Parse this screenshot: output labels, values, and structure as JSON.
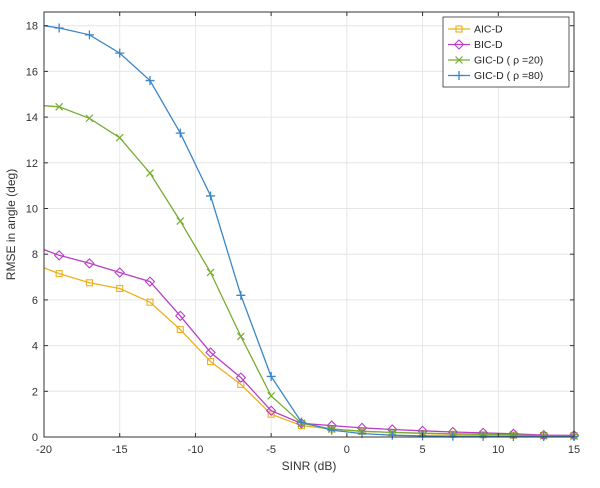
{
  "chart_data": {
    "type": "line",
    "xlabel": "SINR (dB)",
    "ylabel": "RMSE in angle (deg)",
    "xlim": [
      -20,
      15
    ],
    "ylim": [
      0,
      18.6
    ],
    "xticks": [
      -20,
      -15,
      -10,
      -5,
      0,
      5,
      10,
      15
    ],
    "yticks": [
      0,
      2,
      4,
      6,
      8,
      10,
      12,
      14,
      16,
      18
    ],
    "grid": true,
    "legend_position": "top-right",
    "series": [
      {
        "name": "AIC-D",
        "color": "#EDB120",
        "marker": "square",
        "x": [
          -20,
          -19,
          -17,
          -15,
          -13,
          -11,
          -9,
          -7,
          -5,
          -3,
          -1,
          1,
          3,
          5,
          7,
          9,
          11,
          13,
          15
        ],
        "y": [
          7.4,
          7.15,
          6.75,
          6.5,
          5.9,
          4.7,
          3.3,
          2.3,
          1.0,
          0.5,
          0.35,
          0.25,
          0.2,
          0.15,
          0.12,
          0.1,
          0.08,
          0.06,
          0.05
        ]
      },
      {
        "name": "BIC-D",
        "color": "#B83EC4",
        "marker": "diamond",
        "x": [
          -20,
          -19,
          -17,
          -15,
          -13,
          -11,
          -9,
          -7,
          -5,
          -3,
          -1,
          1,
          3,
          5,
          7,
          9,
          11,
          13,
          15
        ],
        "y": [
          8.2,
          7.95,
          7.6,
          7.2,
          6.8,
          5.3,
          3.7,
          2.6,
          1.15,
          0.6,
          0.5,
          0.4,
          0.33,
          0.27,
          0.22,
          0.18,
          0.14,
          0.08,
          0.07
        ]
      },
      {
        "name": "GIC-D ( ρ =20)",
        "color": "#77AC30",
        "marker": "x",
        "x": [
          -20,
          -19,
          -17,
          -15,
          -13,
          -11,
          -9,
          -7,
          -5,
          -3,
          -1,
          1,
          3,
          5,
          7,
          9,
          11,
          13,
          15
        ],
        "y": [
          14.5,
          14.45,
          13.95,
          13.1,
          11.55,
          9.45,
          7.2,
          4.4,
          1.8,
          0.6,
          0.35,
          0.25,
          0.2,
          0.17,
          0.14,
          0.12,
          0.09,
          0.05,
          0.04
        ]
      },
      {
        "name": "GIC-D ( ρ =80)",
        "color": "#3A86C8",
        "marker": "plus",
        "x": [
          -20,
          -19,
          -17,
          -15,
          -13,
          -11,
          -9,
          -7,
          -5,
          -3,
          -1,
          1,
          3,
          5,
          7,
          9,
          11,
          13,
          15
        ],
        "y": [
          18.0,
          17.9,
          17.6,
          16.8,
          15.6,
          13.3,
          10.55,
          6.2,
          2.65,
          0.65,
          0.3,
          0.15,
          0.08,
          0.05,
          0.04,
          0.03,
          0.02,
          0.02,
          0.02
        ]
      }
    ]
  }
}
